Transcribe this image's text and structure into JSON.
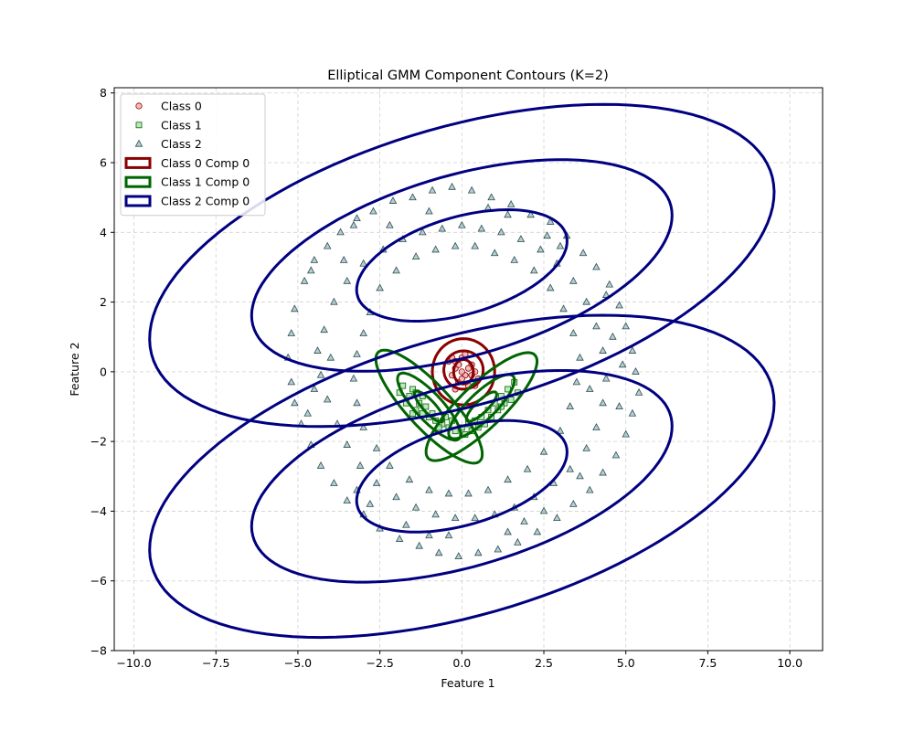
{
  "chart_data": {
    "type": "scatter",
    "title": "Elliptical GMM Component Contours (K=2)",
    "xlabel": "Feature 1",
    "ylabel": "Feature 2",
    "xlim": [
      -10.6,
      11.0
    ],
    "ylim": [
      -8.0,
      8.15
    ],
    "xticks": [
      -10.0,
      -7.5,
      -5.0,
      -2.5,
      0.0,
      2.5,
      5.0,
      7.5,
      10.0
    ],
    "xtick_labels": [
      "−10.0",
      "−7.5",
      "−5.0",
      "−2.5",
      "0.0",
      "2.5",
      "5.0",
      "7.5",
      "10.0"
    ],
    "yticks": [
      -8,
      -6,
      -4,
      -2,
      0,
      2,
      4,
      6,
      8
    ],
    "ytick_labels": [
      "−8",
      "−6",
      "−4",
      "−2",
      "0",
      "2",
      "4",
      "6",
      "8"
    ],
    "grid": true,
    "legend_position": "top-left",
    "legend": [
      {
        "label": "Class 0",
        "kind": "marker",
        "marker": "circle",
        "fill": "#f4a6a6",
        "edge": "#8b0000"
      },
      {
        "label": "Class 1",
        "kind": "marker",
        "marker": "square",
        "fill": "#a8e0a8",
        "edge": "#006400"
      },
      {
        "label": "Class 2",
        "kind": "marker",
        "marker": "triangle",
        "fill": "#9ebcc4",
        "edge": "#2f4f4f"
      },
      {
        "label": "Class 0 Comp 0",
        "kind": "patch",
        "edge": "#8b0000"
      },
      {
        "label": "Class 1 Comp 0",
        "kind": "patch",
        "edge": "#006400"
      },
      {
        "label": "Class 2 Comp 0",
        "kind": "patch",
        "edge": "#000080"
      }
    ],
    "series": [
      {
        "name": "Class 0",
        "marker": "circle",
        "fill": "#f4a6a6",
        "edge": "#8b0000",
        "points": [
          [
            0.0,
            0.4
          ],
          [
            0.1,
            -0.1
          ],
          [
            -0.2,
            0.1
          ],
          [
            0.3,
            0.2
          ],
          [
            -0.1,
            -0.3
          ],
          [
            0.2,
            -0.4
          ],
          [
            -0.3,
            -0.1
          ],
          [
            0.4,
            0.0
          ],
          [
            0.0,
            0.0
          ],
          [
            -0.4,
            0.3
          ],
          [
            0.1,
            0.5
          ],
          [
            0.5,
            -0.2
          ],
          [
            -0.2,
            -0.5
          ],
          [
            0.3,
            -0.1
          ],
          [
            -0.1,
            0.2
          ],
          [
            0.2,
            0.1
          ],
          [
            -0.3,
            0.4
          ],
          [
            0.4,
            -0.4
          ],
          [
            0.0,
            -0.2
          ],
          [
            -0.2,
            0.3
          ]
        ]
      },
      {
        "name": "Class 1",
        "marker": "square",
        "fill": "#a8e0a8",
        "edge": "#006400",
        "points": [
          [
            -1.8,
            -0.4
          ],
          [
            -1.6,
            -0.7
          ],
          [
            -1.5,
            -0.5
          ],
          [
            -1.3,
            -0.9
          ],
          [
            -1.7,
            -0.9
          ],
          [
            -1.4,
            -1.1
          ],
          [
            -1.2,
            -1.2
          ],
          [
            -1.0,
            -1.3
          ],
          [
            -0.8,
            -1.4
          ],
          [
            -0.6,
            -1.5
          ],
          [
            -0.4,
            -1.6
          ],
          [
            -0.2,
            -1.7
          ],
          [
            0.0,
            -1.6
          ],
          [
            0.2,
            -1.5
          ],
          [
            0.4,
            -1.4
          ],
          [
            0.6,
            -1.3
          ],
          [
            0.8,
            -1.1
          ],
          [
            1.0,
            -0.9
          ],
          [
            1.2,
            -0.7
          ],
          [
            1.4,
            -0.5
          ],
          [
            1.6,
            -0.3
          ],
          [
            1.3,
            -0.9
          ],
          [
            1.1,
            -1.1
          ],
          [
            0.9,
            -1.3
          ],
          [
            -1.1,
            -1.0
          ],
          [
            -0.9,
            -1.2
          ],
          [
            -0.5,
            -1.3
          ],
          [
            0.3,
            -1.7
          ],
          [
            0.7,
            -1.5
          ],
          [
            1.5,
            -0.8
          ],
          [
            -1.5,
            -1.2
          ],
          [
            -1.9,
            -0.6
          ],
          [
            -0.3,
            -1.4
          ],
          [
            0.1,
            -1.8
          ],
          [
            1.7,
            -0.6
          ],
          [
            -1.2,
            -0.7
          ],
          [
            0.5,
            -1.6
          ],
          [
            1.2,
            -1.0
          ],
          [
            -0.7,
            -1.6
          ],
          [
            -1.4,
            -0.6
          ]
        ]
      },
      {
        "name": "Class 2",
        "marker": "triangle",
        "fill": "#9ebcc4",
        "edge": "#2f4f4f",
        "points": [
          [
            -5.1,
            1.8
          ],
          [
            -4.8,
            2.6
          ],
          [
            -4.5,
            3.2
          ],
          [
            -4.1,
            3.6
          ],
          [
            -3.7,
            4.0
          ],
          [
            -3.2,
            4.4
          ],
          [
            -2.7,
            4.6
          ],
          [
            -2.1,
            4.9
          ],
          [
            -1.5,
            5.0
          ],
          [
            -0.9,
            5.2
          ],
          [
            -0.3,
            5.3
          ],
          [
            0.3,
            5.2
          ],
          [
            0.9,
            5.0
          ],
          [
            1.5,
            4.8
          ],
          [
            2.1,
            4.5
          ],
          [
            2.7,
            4.3
          ],
          [
            3.2,
            3.9
          ],
          [
            3.7,
            3.4
          ],
          [
            4.1,
            3.0
          ],
          [
            4.5,
            2.5
          ],
          [
            4.8,
            1.9
          ],
          [
            5.0,
            1.3
          ],
          [
            5.2,
            0.6
          ],
          [
            5.3,
            0.0
          ],
          [
            5.4,
            -0.6
          ],
          [
            5.2,
            -1.2
          ],
          [
            5.0,
            -1.8
          ],
          [
            4.7,
            -2.4
          ],
          [
            4.3,
            -2.9
          ],
          [
            3.9,
            -3.4
          ],
          [
            3.4,
            -3.8
          ],
          [
            2.9,
            -4.2
          ],
          [
            2.3,
            -4.6
          ],
          [
            1.7,
            -4.9
          ],
          [
            1.1,
            -5.1
          ],
          [
            0.5,
            -5.2
          ],
          [
            -0.1,
            -5.3
          ],
          [
            -0.7,
            -5.2
          ],
          [
            -1.3,
            -5.0
          ],
          [
            -1.9,
            -4.8
          ],
          [
            -2.5,
            -4.5
          ],
          [
            -3.0,
            -4.1
          ],
          [
            -3.5,
            -3.7
          ],
          [
            -3.9,
            -3.2
          ],
          [
            -4.3,
            -2.7
          ],
          [
            -4.6,
            -2.1
          ],
          [
            -4.9,
            -1.5
          ],
          [
            -5.1,
            -0.9
          ],
          [
            -5.2,
            -0.3
          ],
          [
            -5.3,
            0.4
          ],
          [
            -5.2,
            1.1
          ],
          [
            -4.2,
            1.2
          ],
          [
            -3.9,
            2.0
          ],
          [
            -3.5,
            2.6
          ],
          [
            -3.0,
            3.1
          ],
          [
            -2.4,
            3.5
          ],
          [
            -1.8,
            3.8
          ],
          [
            -1.2,
            4.0
          ],
          [
            -0.6,
            4.1
          ],
          [
            0.0,
            4.2
          ],
          [
            0.6,
            4.1
          ],
          [
            1.2,
            4.0
          ],
          [
            1.8,
            3.8
          ],
          [
            2.4,
            3.5
          ],
          [
            2.9,
            3.1
          ],
          [
            3.4,
            2.6
          ],
          [
            3.8,
            2.0
          ],
          [
            4.1,
            1.3
          ],
          [
            4.3,
            0.6
          ],
          [
            4.4,
            -0.2
          ],
          [
            4.3,
            -0.9
          ],
          [
            4.1,
            -1.6
          ],
          [
            3.8,
            -2.2
          ],
          [
            3.3,
            -2.8
          ],
          [
            2.8,
            -3.2
          ],
          [
            2.2,
            -3.6
          ],
          [
            1.6,
            -3.9
          ],
          [
            1.0,
            -4.1
          ],
          [
            0.4,
            -4.2
          ],
          [
            -0.2,
            -4.2
          ],
          [
            -0.8,
            -4.1
          ],
          [
            -1.4,
            -3.9
          ],
          [
            -2.0,
            -3.6
          ],
          [
            -2.6,
            -3.2
          ],
          [
            -3.1,
            -2.7
          ],
          [
            -3.5,
            -2.1
          ],
          [
            -3.8,
            -1.5
          ],
          [
            -4.1,
            -0.8
          ],
          [
            -4.3,
            -0.1
          ],
          [
            -4.4,
            0.6
          ],
          [
            -2.8,
            1.7
          ],
          [
            -2.5,
            2.4
          ],
          [
            -2.0,
            2.9
          ],
          [
            -1.4,
            3.3
          ],
          [
            -0.8,
            3.5
          ],
          [
            -0.2,
            3.6
          ],
          [
            0.4,
            3.6
          ],
          [
            1.0,
            3.4
          ],
          [
            1.6,
            3.2
          ],
          [
            2.2,
            2.9
          ],
          [
            2.7,
            2.4
          ],
          [
            3.1,
            1.8
          ],
          [
            3.4,
            1.1
          ],
          [
            3.6,
            0.4
          ],
          [
            3.5,
            -0.3
          ],
          [
            3.3,
            -1.0
          ],
          [
            3.0,
            -1.7
          ],
          [
            2.5,
            -2.3
          ],
          [
            2.0,
            -2.8
          ],
          [
            1.4,
            -3.1
          ],
          [
            0.8,
            -3.4
          ],
          [
            0.2,
            -3.5
          ],
          [
            -0.4,
            -3.5
          ],
          [
            -1.0,
            -3.4
          ],
          [
            -1.6,
            -3.1
          ],
          [
            -2.2,
            -2.7
          ],
          [
            -2.6,
            -2.2
          ],
          [
            -3.0,
            -1.6
          ],
          [
            -3.2,
            -0.9
          ],
          [
            -3.3,
            -0.2
          ],
          [
            -3.2,
            0.5
          ],
          [
            -3.0,
            1.1
          ],
          [
            -4.6,
            2.9
          ],
          [
            -3.3,
            4.2
          ],
          [
            -1.0,
            4.6
          ],
          [
            1.4,
            4.5
          ],
          [
            3.0,
            3.6
          ],
          [
            4.6,
            1.0
          ],
          [
            4.8,
            -1.0
          ],
          [
            3.6,
            -3.0
          ],
          [
            1.4,
            -4.6
          ],
          [
            -1.0,
            -4.7
          ],
          [
            -3.2,
            -3.4
          ],
          [
            -4.7,
            -1.2
          ],
          [
            -4.0,
            0.4
          ],
          [
            -2.2,
            4.2
          ],
          [
            0.8,
            4.7
          ],
          [
            2.6,
            3.9
          ],
          [
            3.9,
            -0.5
          ],
          [
            2.5,
            -4.0
          ],
          [
            -0.4,
            -4.7
          ],
          [
            -2.8,
            -3.8
          ],
          [
            -4.5,
            -0.5
          ],
          [
            -3.6,
            3.2
          ],
          [
            4.4,
            2.2
          ],
          [
            4.9,
            0.2
          ],
          [
            1.9,
            -4.3
          ],
          [
            -1.7,
            -4.4
          ]
        ]
      }
    ],
    "ellipses": [
      {
        "group": "Class 0 Comp 0",
        "edge": "#8b0000",
        "cx": 0.05,
        "cy": 0.0,
        "rx": 0.95,
        "ry": 0.95,
        "angle": 0
      },
      {
        "group": "Class 0 Comp 0",
        "edge": "#8b0000",
        "cx": 0.05,
        "cy": 0.05,
        "rx": 0.55,
        "ry": 0.6,
        "angle": 90
      },
      {
        "group": "Class 0 Comp 0",
        "edge": "#8b0000",
        "cx": 0.05,
        "cy": 0.0,
        "rx": 0.3,
        "ry": 0.35,
        "angle": 0
      },
      {
        "group": "Class 1 Comp 0",
        "edge": "#006400",
        "cx": -1.0,
        "cy": -1.0,
        "rx": 2.2,
        "ry": 0.65,
        "angle": -45
      },
      {
        "group": "Class 1 Comp 0",
        "edge": "#006400",
        "cx": -1.0,
        "cy": -1.0,
        "rx": 1.3,
        "ry": 0.4,
        "angle": -45
      },
      {
        "group": "Class 1 Comp 0",
        "edge": "#006400",
        "cx": -1.0,
        "cy": -1.0,
        "rx": 0.6,
        "ry": 0.18,
        "angle": -45
      },
      {
        "group": "Class 1 Comp 0",
        "edge": "#006400",
        "cx": 0.6,
        "cy": -1.0,
        "rx": 2.2,
        "ry": 0.65,
        "angle": 42
      },
      {
        "group": "Class 1 Comp 0",
        "edge": "#006400",
        "cx": 0.6,
        "cy": -1.0,
        "rx": 1.3,
        "ry": 0.4,
        "angle": 42
      },
      {
        "group": "Class 1 Comp 0",
        "edge": "#006400",
        "cx": 0.6,
        "cy": -1.0,
        "rx": 0.6,
        "ry": 0.18,
        "angle": 42
      },
      {
        "group": "Class 2 Comp 0",
        "edge": "#000080",
        "cx": 0.0,
        "cy": 3.05,
        "rx": 9.8,
        "ry": 4.0,
        "angle": 15
      },
      {
        "group": "Class 2 Comp 0",
        "edge": "#000080",
        "cx": 0.0,
        "cy": 3.05,
        "rx": 6.6,
        "ry": 2.6,
        "angle": 15
      },
      {
        "group": "Class 2 Comp 0",
        "edge": "#000080",
        "cx": 0.0,
        "cy": 3.05,
        "rx": 3.3,
        "ry": 1.4,
        "angle": 15
      },
      {
        "group": "Class 2 Comp 0",
        "edge": "#000080",
        "cx": 0.0,
        "cy": -3.0,
        "rx": 9.8,
        "ry": 4.0,
        "angle": 15
      },
      {
        "group": "Class 2 Comp 0",
        "edge": "#000080",
        "cx": 0.0,
        "cy": -3.0,
        "rx": 6.6,
        "ry": 2.6,
        "angle": 15
      },
      {
        "group": "Class 2 Comp 0",
        "edge": "#000080",
        "cx": 0.0,
        "cy": -3.0,
        "rx": 3.3,
        "ry": 1.4,
        "angle": 15
      }
    ]
  }
}
